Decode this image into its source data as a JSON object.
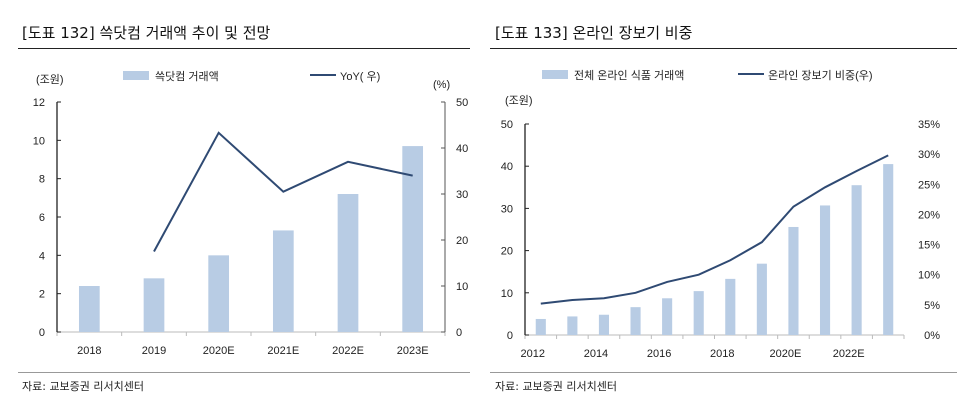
{
  "panels": [
    {
      "title": "[도표 132] 쓱닷컴 거래액 추이 및 전망",
      "source": "자료: 교보증권 리서치센터"
    },
    {
      "title": "[도표 133] 온라인 장보기 비중",
      "source": "자료: 교보증권 리서치센터"
    }
  ],
  "colors": {
    "bar": "#b8cce4",
    "line": "#2f4a73"
  },
  "chart_data": [
    {
      "type": "bar+line",
      "categories": [
        "2018",
        "2019",
        "2020E",
        "2021E",
        "2022E",
        "2023E"
      ],
      "series": [
        {
          "name": "쓱닷컴  거래액",
          "type": "bar",
          "axis": "left",
          "values": [
            2.4,
            2.8,
            4.0,
            5.3,
            7.2,
            9.7
          ]
        },
        {
          "name": "YoY( 우)",
          "type": "line",
          "axis": "right",
          "values": [
            null,
            17.5,
            43.3,
            30.5,
            37.0,
            34.0
          ]
        }
      ],
      "ylabel_left": "(조원)",
      "ylabel_right": "(%)",
      "ylim_left": [
        0,
        12
      ],
      "yticks_left": [
        0,
        2,
        4,
        6,
        8,
        10,
        12
      ],
      "ylim_right": [
        0,
        50
      ],
      "yticks_right": [
        0,
        10,
        20,
        30,
        40,
        50
      ],
      "legend": "top",
      "grid": false
    },
    {
      "type": "bar+line",
      "categories": [
        "2012",
        "2013",
        "2014",
        "2015",
        "2016",
        "2017",
        "2018",
        "2019",
        "2020E",
        "2021E",
        "2022E",
        "2023E"
      ],
      "xtick_labels": [
        "2012",
        "2014",
        "2016",
        "2018",
        "2020E",
        "2022E"
      ],
      "series": [
        {
          "name": "전체  온라인  식품  거래액",
          "type": "bar",
          "axis": "left",
          "values": [
            3.8,
            4.4,
            4.8,
            6.6,
            8.7,
            10.4,
            13.3,
            16.9,
            25.6,
            30.7,
            35.5,
            40.5
          ]
        },
        {
          "name": "온라인  장보기  비중(우)",
          "type": "line",
          "axis": "right",
          "values": [
            5.2,
            5.8,
            6.1,
            7.0,
            8.8,
            10.0,
            12.4,
            15.4,
            21.3,
            24.5,
            27.2,
            29.8
          ]
        }
      ],
      "ylabel_left": "(조원)",
      "ylim_left": [
        0,
        50
      ],
      "yticks_left": [
        0,
        10,
        20,
        30,
        40,
        50
      ],
      "ylim_right": [
        0,
        35
      ],
      "yticks_right": [
        "0%",
        "5%",
        "10%",
        "15%",
        "20%",
        "25%",
        "30%",
        "35%"
      ],
      "legend": "top",
      "grid": false
    }
  ]
}
